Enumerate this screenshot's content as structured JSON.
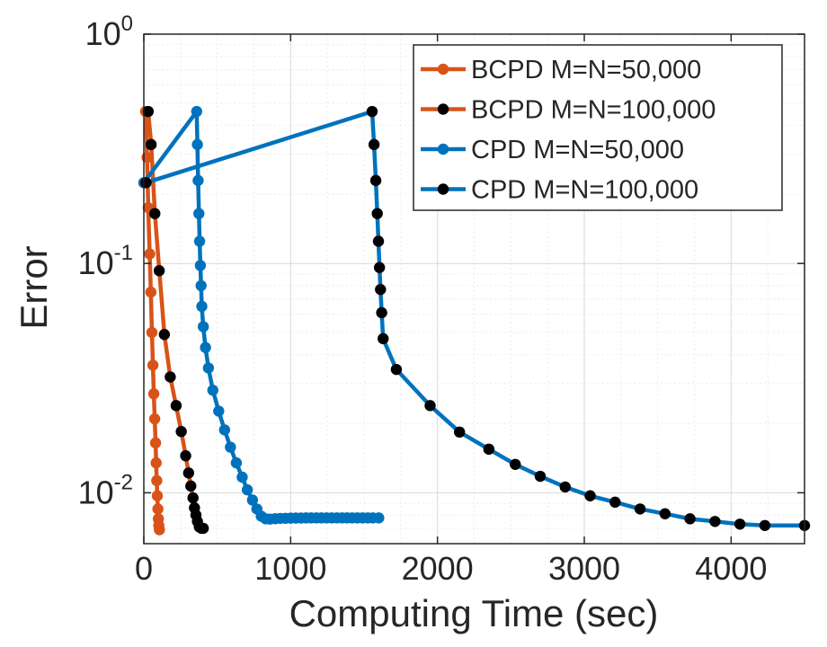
{
  "chart_data": {
    "type": "line",
    "title": "",
    "xlabel": "Computing Time (sec)",
    "ylabel": "Error",
    "yscale": "log",
    "xlim": [
      0,
      4500
    ],
    "ylim": [
      0.006,
      1
    ],
    "xticks": [
      {
        "value": 0,
        "label": "0"
      },
      {
        "value": 1000,
        "label": "1000"
      },
      {
        "value": 2000,
        "label": "2000"
      },
      {
        "value": 3000,
        "label": "3000"
      },
      {
        "value": 4000,
        "label": "4000"
      }
    ],
    "yticks": [
      {
        "value": 0.01,
        "base": "10",
        "exp": "-2"
      },
      {
        "value": 0.1,
        "base": "10",
        "exp": "-1"
      },
      {
        "value": 1,
        "base": "10",
        "exp": "0"
      }
    ],
    "grid": true,
    "legend_position": "top-right",
    "series": [
      {
        "name": "BCPD M=N=50,000",
        "line_color": "#D95319",
        "marker_color": "#D95319",
        "points": [
          [
            12,
            0.46
          ],
          [
            22,
            0.29
          ],
          [
            30,
            0.175
          ],
          [
            40,
            0.11
          ],
          [
            48,
            0.075
          ],
          [
            55,
            0.05
          ],
          [
            62,
            0.036
          ],
          [
            68,
            0.027
          ],
          [
            74,
            0.021
          ],
          [
            80,
            0.0165
          ],
          [
            84,
            0.0135
          ],
          [
            88,
            0.0113
          ],
          [
            92,
            0.0097
          ],
          [
            96,
            0.0085
          ],
          [
            99,
            0.0077
          ],
          [
            102,
            0.0072
          ],
          [
            106,
            0.0069
          ]
        ]
      },
      {
        "name": "BCPD M=N=100,000",
        "line_color": "#D95319",
        "marker_color": "#000000",
        "points": [
          [
            30,
            0.46
          ],
          [
            50,
            0.33
          ],
          [
            75,
            0.165
          ],
          [
            105,
            0.093
          ],
          [
            140,
            0.049
          ],
          [
            180,
            0.032
          ],
          [
            220,
            0.024
          ],
          [
            255,
            0.0185
          ],
          [
            285,
            0.0145
          ],
          [
            305,
            0.0122
          ],
          [
            320,
            0.0107
          ],
          [
            335,
            0.0095
          ],
          [
            345,
            0.0086
          ],
          [
            355,
            0.008
          ],
          [
            365,
            0.0075
          ],
          [
            378,
            0.0071
          ],
          [
            392,
            0.007
          ],
          [
            405,
            0.007
          ]
        ]
      },
      {
        "name": "CPD M=N=50,000",
        "line_color": "#0072BD",
        "marker_color": "#0072BD",
        "points": [
          [
            0,
            0.225
          ],
          [
            360,
            0.46
          ],
          [
            365,
            0.33
          ],
          [
            370,
            0.23
          ],
          [
            375,
            0.165
          ],
          [
            380,
            0.125
          ],
          [
            385,
            0.098
          ],
          [
            390,
            0.08
          ],
          [
            395,
            0.065
          ],
          [
            405,
            0.053
          ],
          [
            420,
            0.043
          ],
          [
            440,
            0.035
          ],
          [
            470,
            0.028
          ],
          [
            510,
            0.0227
          ],
          [
            550,
            0.0188
          ],
          [
            590,
            0.0158
          ],
          [
            630,
            0.0135
          ],
          [
            670,
            0.0117
          ],
          [
            705,
            0.0103
          ],
          [
            740,
            0.0093
          ],
          [
            770,
            0.0085
          ],
          [
            800,
            0.0079
          ],
          [
            830,
            0.0077
          ],
          [
            860,
            0.00768
          ],
          [
            895,
            0.00771
          ],
          [
            930,
            0.00773
          ],
          [
            965,
            0.00774
          ],
          [
            1000,
            0.00775
          ],
          [
            1035,
            0.00776
          ],
          [
            1070,
            0.00776
          ],
          [
            1105,
            0.00777
          ],
          [
            1140,
            0.00777
          ],
          [
            1175,
            0.00777
          ],
          [
            1210,
            0.00777
          ],
          [
            1245,
            0.00777
          ],
          [
            1280,
            0.00777
          ],
          [
            1315,
            0.00777
          ],
          [
            1350,
            0.00777
          ],
          [
            1385,
            0.00777
          ],
          [
            1420,
            0.00777
          ],
          [
            1455,
            0.00777
          ],
          [
            1490,
            0.00777
          ],
          [
            1525,
            0.00777
          ],
          [
            1560,
            0.00777
          ],
          [
            1600,
            0.00777
          ]
        ]
      },
      {
        "name": "CPD M=N=100,000",
        "line_color": "#0072BD",
        "marker_color": "#000000",
        "points": [
          [
            15,
            0.225
          ],
          [
            1555,
            0.46
          ],
          [
            1568,
            0.33
          ],
          [
            1580,
            0.23
          ],
          [
            1590,
            0.165
          ],
          [
            1598,
            0.125
          ],
          [
            1605,
            0.096
          ],
          [
            1612,
            0.077
          ],
          [
            1620,
            0.061
          ],
          [
            1630,
            0.047
          ],
          [
            1720,
            0.0345
          ],
          [
            1950,
            0.024
          ],
          [
            2150,
            0.0184
          ],
          [
            2350,
            0.0155
          ],
          [
            2530,
            0.0133
          ],
          [
            2700,
            0.0118
          ],
          [
            2870,
            0.0106
          ],
          [
            3040,
            0.0097
          ],
          [
            3210,
            0.0091
          ],
          [
            3380,
            0.0085
          ],
          [
            3550,
            0.0081
          ],
          [
            3720,
            0.0077
          ],
          [
            3890,
            0.0075
          ],
          [
            4060,
            0.0073
          ],
          [
            4230,
            0.0072
          ],
          [
            4500,
            0.0072
          ]
        ]
      }
    ]
  }
}
